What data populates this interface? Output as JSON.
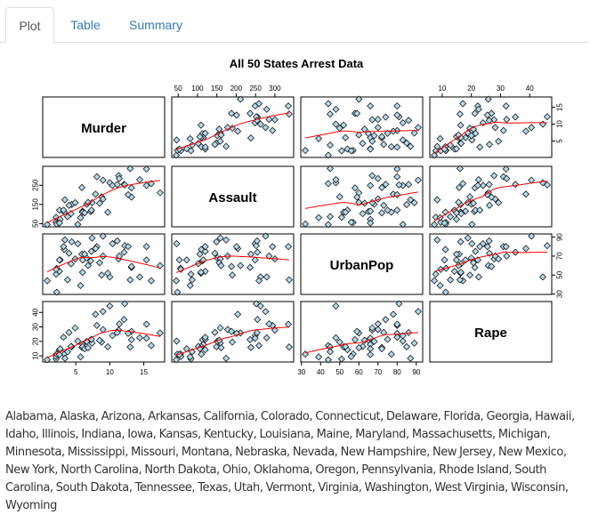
{
  "tabs": [
    {
      "label": "Plot",
      "active": true
    },
    {
      "label": "Table",
      "active": false
    },
    {
      "label": "Summary",
      "active": false
    }
  ],
  "colors": {
    "tab_link": "#337ab7",
    "points": "#b5d8e6",
    "smoother": "#ff0000"
  },
  "chart_data": {
    "type": "scatter",
    "title": "All 50 States Arrest Data",
    "variables": [
      "Murder",
      "Assault",
      "UrbanPop",
      "Rape"
    ],
    "ranges": {
      "Murder": [
        0.8,
        17.4
      ],
      "Assault": [
        45,
        337
      ],
      "UrbanPop": [
        32,
        91
      ],
      "Rape": [
        7.3,
        46.0
      ]
    },
    "ticks": {
      "Murder": [
        5,
        10,
        15
      ],
      "Assault": [
        50,
        100,
        150,
        200,
        250,
        300
      ],
      "UrbanPop": [
        30,
        40,
        50,
        60,
        70,
        80,
        90
      ],
      "Rape": [
        10,
        20,
        30,
        40
      ]
    },
    "right_axis_ticks": {
      "Murder": [
        5,
        10,
        15
      ],
      "UrbanPop": [
        30,
        50,
        70,
        90
      ]
    },
    "left_axis_ticks": {
      "Assault": [
        50,
        150,
        250
      ],
      "Rape": [
        10,
        20,
        30,
        40
      ]
    },
    "smoother": "lowess",
    "Murder": [
      13.2,
      10.0,
      8.1,
      8.8,
      9.0,
      7.9,
      3.3,
      5.9,
      15.4,
      17.4,
      5.3,
      2.6,
      10.4,
      7.2,
      2.2,
      6.0,
      9.7,
      15.4,
      2.1,
      11.3,
      4.4,
      12.1,
      2.7,
      16.1,
      9.0,
      6.0,
      4.3,
      12.2,
      2.1,
      7.4,
      11.4,
      11.1,
      13.0,
      0.8,
      7.3,
      6.6,
      4.9,
      6.3,
      3.4,
      14.4,
      3.8,
      13.2,
      12.7,
      3.2,
      2.2,
      8.5,
      4.0,
      5.7,
      2.6,
      6.8
    ],
    "Assault": [
      236,
      263,
      294,
      190,
      276,
      204,
      110,
      238,
      335,
      211,
      46,
      120,
      249,
      113,
      56,
      115,
      109,
      249,
      83,
      300,
      149,
      255,
      72,
      259,
      178,
      109,
      102,
      252,
      57,
      159,
      285,
      254,
      337,
      45,
      120,
      151,
      159,
      106,
      174,
      279,
      86,
      188,
      201,
      120,
      48,
      156,
      145,
      81,
      53,
      161
    ],
    "UrbanPop": [
      58,
      48,
      80,
      50,
      91,
      78,
      77,
      72,
      80,
      60,
      83,
      54,
      83,
      65,
      57,
      66,
      52,
      66,
      51,
      67,
      85,
      74,
      66,
      44,
      70,
      53,
      62,
      81,
      56,
      89,
      70,
      86,
      45,
      44,
      75,
      68,
      67,
      72,
      87,
      48,
      45,
      59,
      80,
      80,
      32,
      63,
      73,
      39,
      66,
      60
    ],
    "Rape": [
      21.2,
      44.5,
      31.0,
      19.5,
      40.6,
      38.7,
      11.1,
      15.8,
      31.9,
      25.8,
      20.2,
      14.2,
      24.0,
      21.0,
      11.3,
      18.0,
      16.3,
      22.2,
      7.8,
      27.8,
      16.3,
      35.1,
      14.9,
      17.1,
      28.2,
      16.4,
      16.5,
      46.0,
      9.5,
      18.8,
      32.1,
      26.1,
      16.1,
      7.3,
      21.4,
      20.0,
      29.3,
      14.9,
      8.3,
      22.5,
      12.8,
      26.9,
      25.5,
      22.9,
      11.2,
      20.7,
      26.2,
      9.3,
      10.8,
      15.6
    ]
  },
  "states_text": "Alabama, Alaska, Arizona, Arkansas, California, Colorado, Connecticut, Delaware, Florida, Georgia, Hawaii, Idaho, Illinois, Indiana, Iowa, Kansas, Kentucky, Louisiana, Maine, Maryland, Massachusetts, Michigan, Minnesota, Mississippi, Missouri, Montana, Nebraska, Nevada, New Hampshire, New Jersey, New Mexico, New York, North Carolina, North Dakota, Ohio, Oklahoma, Oregon, Pennsylvania, Rhode Island, South Carolina, South Dakota, Tennessee, Texas, Utah, Vermont, Virginia, Washington, West Virginia, Wisconsin, Wyoming"
}
